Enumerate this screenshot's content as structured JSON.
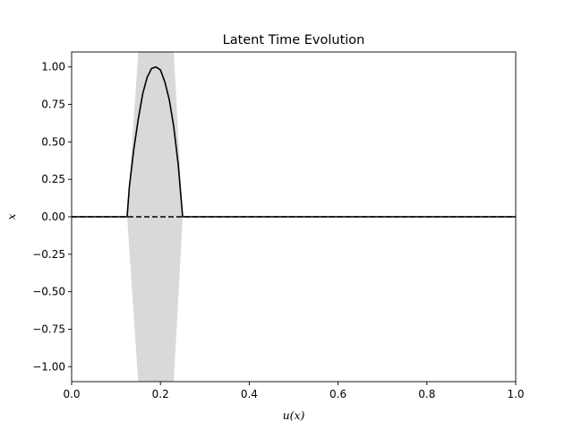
{
  "chart_data": {
    "type": "line",
    "title": "Latent Time Evolution",
    "xlabel": "u(x)",
    "ylabel": "x",
    "xlim": [
      0,
      1
    ],
    "ylim": [
      -1.1,
      1.1
    ],
    "xticks": [
      "0.0",
      "0.2",
      "0.4",
      "0.6",
      "0.8",
      "1.0"
    ],
    "xtick_values": [
      0,
      0.2,
      0.4,
      0.6,
      0.8,
      1.0
    ],
    "yticks": [
      "−1.00",
      "−0.75",
      "−0.50",
      "−0.25",
      "0.00",
      "0.25",
      "0.50",
      "0.75",
      "1.00"
    ],
    "ytick_values": [
      -1.0,
      -0.75,
      -0.5,
      -0.25,
      0.0,
      0.25,
      0.5,
      0.75,
      1.0
    ],
    "grid": false,
    "legend": "none",
    "colors": {
      "line": "#000000",
      "band": "#d9d9d9"
    },
    "series": [
      {
        "style": "solid",
        "x": [
          0,
          0.125,
          0.13,
          0.14,
          0.15,
          0.16,
          0.17,
          0.18,
          0.19,
          0.2,
          0.21,
          0.22,
          0.23,
          0.24,
          0.25,
          1.0
        ],
        "y": [
          0,
          0,
          0.2,
          0.45,
          0.65,
          0.82,
          0.93,
          0.99,
          1.0,
          0.98,
          0.9,
          0.78,
          0.6,
          0.35,
          0,
          0
        ]
      },
      {
        "style": "dashed",
        "x": [
          0,
          1.0
        ],
        "y": [
          0,
          0
        ]
      }
    ],
    "band": {
      "x": [
        0.125,
        0.15,
        0.23,
        0.25
      ],
      "upper": [
        0,
        1.1,
        1.1,
        0
      ],
      "lower": [
        0,
        -1.1,
        -1.1,
        0
      ]
    }
  }
}
